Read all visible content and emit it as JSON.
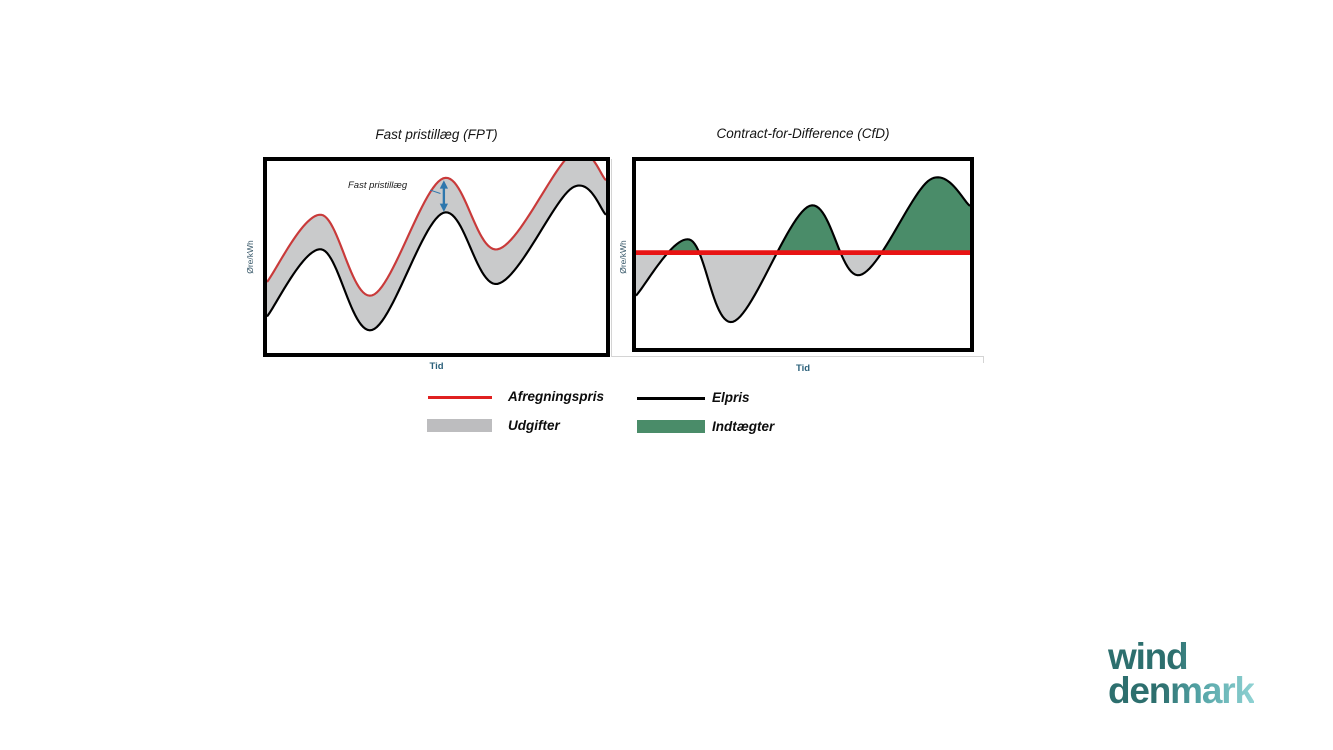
{
  "charts": [
    {
      "title": "Fast pristillæg (FPT)",
      "ylabel": "Øre/kWh",
      "xlabel": "Tid",
      "annotation": "Fast pristillæg"
    },
    {
      "title": "Contract-for-Difference (CfD)",
      "ylabel": "Øre/kWh",
      "xlabel": "Tid"
    }
  ],
  "legend": {
    "items": [
      {
        "label": "Afregningspris",
        "swatch": "red-line",
        "color": "#e02020"
      },
      {
        "label": "Elpris",
        "swatch": "black-line",
        "color": "#000000"
      },
      {
        "label": "Udgifter",
        "swatch": "gray-box",
        "color": "#bdbdbf"
      },
      {
        "label": "Indtægter",
        "swatch": "green-box",
        "color": "#4a8c69"
      }
    ]
  },
  "logo": {
    "word1": "wind",
    "word2": "denmark",
    "color_dark": "#2d6f6e",
    "color_light": "#8fd2d3"
  },
  "colors": {
    "afregningspris_fpt_curve": "#c93a3a",
    "afregningspris_cfd_line": "#e81414",
    "elpris_line": "#000000",
    "udgifter_fill": "#c9cacb",
    "indtaegter_fill": "#4a8c69",
    "annotation_arrow_blue": "#2e77ad",
    "axis_label_blue": "#2b607a",
    "frame_border": "#000000"
  },
  "chart_data": [
    {
      "type": "area",
      "title": "Fast pristillæg (FPT)",
      "xlabel": "Tid",
      "ylabel": "Øre/kWh",
      "note": "Conceptual illustration, no numeric ticks shown; x and y in arbitrary units",
      "xlim": [
        0,
        100
      ],
      "ylim": [
        0,
        10
      ],
      "x": [
        0,
        16,
        31,
        52,
        68,
        90,
        100
      ],
      "series": [
        {
          "name": "Afregningspris",
          "color": "#c93a3a",
          "values": [
            3.7,
            7.2,
            3.0,
            9.1,
            5.4,
            10.4,
            9.0
          ]
        },
        {
          "name": "Elpris",
          "color": "#000000",
          "values": [
            1.9,
            5.4,
            1.2,
            7.3,
            3.6,
            8.6,
            7.2
          ]
        }
      ],
      "band": {
        "name": "Udgifter",
        "between": [
          "Afregningspris",
          "Elpris"
        ],
        "color": "#c9cacb"
      },
      "annotation": {
        "text": "Fast pristillæg",
        "meaning": "constant gap between Afregningspris and Elpris",
        "at_x": 52
      },
      "legend_position": "shared below charts",
      "grid": false
    },
    {
      "type": "area",
      "title": "Contract-for-Difference (CfD)",
      "xlabel": "Tid",
      "ylabel": "Øre/kWh",
      "note": "Conceptual illustration, no numeric ticks shown; x and y in arbitrary units",
      "xlim": [
        0,
        100
      ],
      "ylim": [
        0,
        10
      ],
      "x": [
        0,
        16,
        29,
        52,
        67,
        88,
        100
      ],
      "series": [
        {
          "name": "Afregningspris",
          "color": "#e81414",
          "values": [
            5.1,
            5.1,
            5.1,
            5.1,
            5.1,
            5.1,
            5.1
          ]
        },
        {
          "name": "Elpris",
          "color": "#000000",
          "values": [
            2.8,
            5.8,
            1.4,
            7.6,
            3.9,
            9.0,
            7.6
          ]
        }
      ],
      "areas": [
        {
          "name": "Indtægter",
          "condition": "Elpris above Afregningspris",
          "color": "#4a8c69"
        },
        {
          "name": "Udgifter",
          "condition": "Elpris below Afregningspris",
          "color": "#c9cacb"
        }
      ],
      "legend_position": "shared below charts",
      "grid": false
    }
  ]
}
